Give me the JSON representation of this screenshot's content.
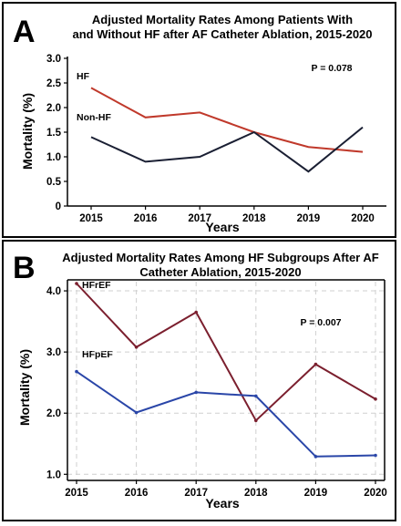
{
  "chart_data": [
    {
      "panel_letter": "A",
      "type": "line",
      "title_lines": [
        "Adjusted Mortality Rates Among Patients With",
        "and Without HF after AF Catheter Ablation, 2015-2020"
      ],
      "xlabel": "Years",
      "ylabel": "Mortality (%)",
      "x": [
        "2015",
        "2016",
        "2017",
        "2018",
        "2019",
        "2020"
      ],
      "yticks": [
        "0",
        "0.5",
        "1.0",
        "1.5",
        "2.0",
        "2.5",
        "3.0"
      ],
      "ylim": [
        0,
        3.0
      ],
      "grid": false,
      "p_value": "P = 0.078",
      "series": [
        {
          "name": "HF",
          "color": "#c0392b",
          "values": [
            2.4,
            1.8,
            1.9,
            1.5,
            1.2,
            1.1
          ]
        },
        {
          "name": "Non-HF",
          "color": "#1a1f33",
          "values": [
            1.4,
            0.9,
            1.0,
            1.5,
            0.7,
            1.6
          ]
        }
      ]
    },
    {
      "panel_letter": "B",
      "type": "line",
      "title_lines": [
        "Adjusted Mortality Rates Among HF Subgroups After AF",
        "Catheter Ablation, 2015-2020"
      ],
      "xlabel": "Years",
      "ylabel": "Mortality (%)",
      "x": [
        "2015",
        "2016",
        "2017",
        "2018",
        "2019",
        "2020"
      ],
      "yticks": [
        "1.0",
        "2.0",
        "3.0",
        "4.0"
      ],
      "ylim": [
        0.9,
        4.15
      ],
      "grid": true,
      "p_value": "P = 0.007",
      "series": [
        {
          "name": "HFrEF",
          "color": "#7b1f2e",
          "values": [
            4.12,
            3.08,
            3.65,
            1.88,
            2.8,
            2.23
          ]
        },
        {
          "name": "HFpEF",
          "color": "#2a46a8",
          "values": [
            2.68,
            2.01,
            2.34,
            2.28,
            1.29,
            1.31
          ]
        }
      ]
    }
  ]
}
